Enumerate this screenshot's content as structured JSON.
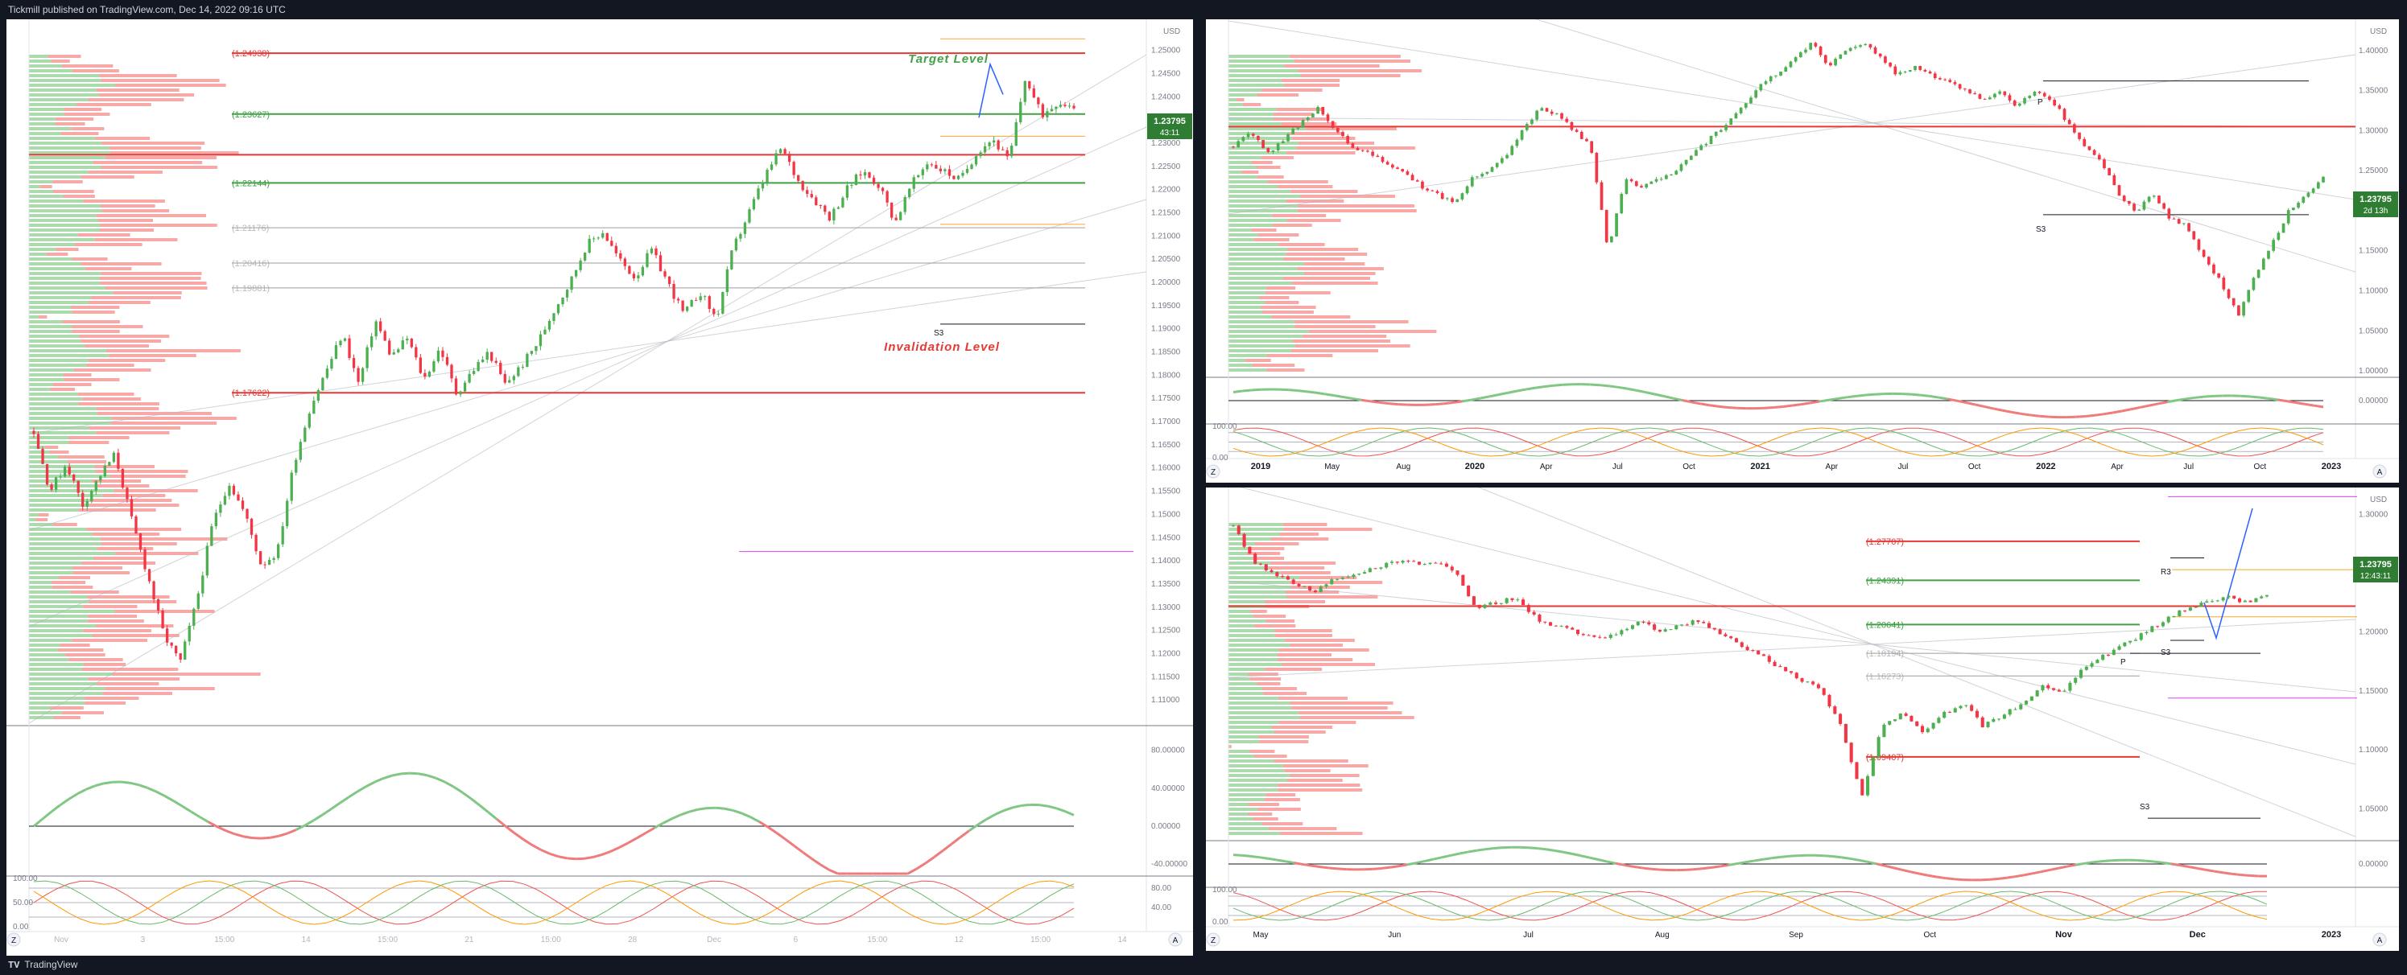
{
  "header": {
    "published": "Tickmill published on TradingView.com, Dec 14, 2022 09:16 UTC"
  },
  "footer": {
    "brand": "TradingView"
  },
  "colors": {
    "bull": "#4caf50",
    "bear": "#f23645",
    "bg": "#ffffff",
    "osc_up": "#81c784",
    "osc_down": "#ef7b7b",
    "level_red": "#e53935",
    "level_green": "#43a047",
    "target": "#43a047",
    "yellow": "#f9a825",
    "magenta": "#e040fb"
  },
  "icons": {
    "z_button": "Z",
    "a_button": "A",
    "tv_logo": "tv-logo-icon"
  },
  "chart_data": [
    {
      "panel": "left",
      "type": "candlestick",
      "timeframe": "intraday",
      "currency_label": "USD",
      "price_axis": [
        "1.25000",
        "1.24500",
        "1.24000",
        "1.23500",
        "1.23000",
        "1.22500",
        "1.22000",
        "1.21500",
        "1.21000",
        "1.20500",
        "1.20000",
        "1.19500",
        "1.19000",
        "1.18500",
        "1.18000",
        "1.17500",
        "1.17000",
        "1.16500",
        "1.16000",
        "1.15500",
        "1.15000",
        "1.14500",
        "1.14000",
        "1.13500",
        "1.13000",
        "1.12500",
        "1.12000",
        "1.11500",
        "1.11000"
      ],
      "ylim": [
        1.105,
        1.256
      ],
      "time_axis": [
        "Nov",
        "3",
        "15:00",
        "14",
        "15:00",
        "21",
        "15:00",
        "28",
        "Dec",
        "6",
        "15:00",
        "12",
        "15:00",
        "14"
      ],
      "levels": [
        {
          "label": "(1.24938)",
          "value": 1.24938,
          "color": "red"
        },
        {
          "label": "(1.23627)",
          "value": 1.23627,
          "color": "green"
        },
        {
          "label": "(1.22144)",
          "value": 1.22144,
          "color": "green"
        },
        {
          "label": "(1.21176)",
          "value": 1.21176,
          "color": "gray"
        },
        {
          "label": "(1.20416)",
          "value": 1.20416,
          "color": "gray"
        },
        {
          "label": "(1.19881)",
          "value": 1.19881,
          "color": "gray"
        },
        {
          "label": "(1.17622)",
          "value": 1.17622,
          "color": "red"
        }
      ],
      "annotations": {
        "target": "Target  Level",
        "invalidation": "Invalidation Level",
        "s3": "S3"
      },
      "price_tag": {
        "value": "1.23795",
        "timer": "43:11"
      },
      "close_path": [
        1.168,
        1.155,
        1.161,
        1.152,
        1.158,
        1.163,
        1.149,
        1.137,
        1.124,
        1.118,
        1.131,
        1.148,
        1.157,
        1.15,
        1.139,
        1.142,
        1.161,
        1.173,
        1.181,
        1.189,
        1.178,
        1.192,
        1.184,
        1.188,
        1.179,
        1.186,
        1.176,
        1.181,
        1.185,
        1.178,
        1.182,
        1.187,
        1.194,
        1.2,
        1.208,
        1.211,
        1.205,
        1.201,
        1.207,
        1.2,
        1.193,
        1.198,
        1.192,
        1.207,
        1.215,
        1.223,
        1.229,
        1.222,
        1.218,
        1.214,
        1.22,
        1.224,
        1.221,
        1.213,
        1.221,
        1.226,
        1.224,
        1.222,
        1.228,
        1.231,
        1.226,
        1.244,
        1.236,
        1.239,
        1.238
      ],
      "oscillator": {
        "ticks": [
          "80.00000",
          "40.00000",
          "0.00000",
          "-40.00000"
        ],
        "ylim": [
          -50,
          100
        ]
      },
      "stoch": {
        "ticks": [
          "100.00",
          "50.00",
          "0.00"
        ],
        "right_ticks": [
          "80.00",
          "40.00"
        ]
      }
    },
    {
      "panel": "top-right",
      "type": "candlestick",
      "timeframe": "weekly",
      "currency_label": "USD",
      "price_axis": [
        "1.40000",
        "1.35000",
        "1.30000",
        "1.25000",
        "1.20000",
        "1.15000",
        "1.10000",
        "1.05000",
        "1.00000"
      ],
      "ylim": [
        0.995,
        1.435
      ],
      "time_axis": [
        "2019",
        "May",
        "Aug",
        "2020",
        "Apr",
        "Jul",
        "Oct",
        "2021",
        "Apr",
        "Jul",
        "Oct",
        "2022",
        "Apr",
        "Jul",
        "Oct",
        "2023"
      ],
      "labels": {
        "p": "P",
        "s3": "S3"
      },
      "price_tag": {
        "value": "1.23795",
        "timer": "2d 13h"
      },
      "close_path": [
        1.28,
        1.3,
        1.27,
        1.29,
        1.31,
        1.33,
        1.3,
        1.28,
        1.27,
        1.26,
        1.25,
        1.23,
        1.22,
        1.21,
        1.24,
        1.25,
        1.27,
        1.3,
        1.33,
        1.32,
        1.3,
        1.28,
        1.15,
        1.24,
        1.23,
        1.24,
        1.25,
        1.27,
        1.29,
        1.31,
        1.33,
        1.36,
        1.37,
        1.39,
        1.41,
        1.38,
        1.4,
        1.41,
        1.39,
        1.37,
        1.38,
        1.37,
        1.36,
        1.35,
        1.34,
        1.35,
        1.33,
        1.35,
        1.34,
        1.31,
        1.28,
        1.26,
        1.22,
        1.2,
        1.22,
        1.19,
        1.18,
        1.14,
        1.11,
        1.07,
        1.12,
        1.16,
        1.2,
        1.22,
        1.24
      ],
      "oscillator": {
        "ticks": [
          "0.00000"
        ],
        "ylim": [
          -1,
          1
        ]
      },
      "stoch": {
        "ticks": [
          "100.00",
          "0.00"
        ]
      }
    },
    {
      "panel": "bottom-right",
      "type": "candlestick",
      "timeframe": "daily",
      "currency_label": "USD",
      "price_axis": [
        "1.30000",
        "1.25000",
        "1.20000",
        "1.15000",
        "1.10000",
        "1.05000"
      ],
      "ylim": [
        1.025,
        1.32
      ],
      "time_axis": [
        "May",
        "Jun",
        "Jul",
        "Aug",
        "Sep",
        "Oct",
        "Nov",
        "Dec",
        "2023"
      ],
      "levels": [
        {
          "label": "(1.27707)",
          "value": 1.27707,
          "color": "red"
        },
        {
          "label": "(1.24391)",
          "value": 1.24391,
          "color": "green"
        },
        {
          "label": "(1.20641)",
          "value": 1.20641,
          "color": "green"
        },
        {
          "label": "(1.18194)",
          "value": 1.18194,
          "color": "gray"
        },
        {
          "label": "(1.16273)",
          "value": 1.16273,
          "color": "gray"
        },
        {
          "label": "(1.09407)",
          "value": 1.09407,
          "color": "red"
        }
      ],
      "labels": {
        "r3": "R3",
        "s3a": "S3",
        "s3b": "S3",
        "p": "P"
      },
      "price_tag": {
        "value": "1.23795",
        "timer": "12:43:11"
      },
      "close_path": [
        1.29,
        1.26,
        1.25,
        1.24,
        1.235,
        1.245,
        1.25,
        1.255,
        1.26,
        1.258,
        1.26,
        1.25,
        1.22,
        1.225,
        1.23,
        1.21,
        1.205,
        1.2,
        1.195,
        1.2,
        1.21,
        1.2,
        1.205,
        1.21,
        1.2,
        1.19,
        1.18,
        1.17,
        1.16,
        1.15,
        1.12,
        1.06,
        1.12,
        1.13,
        1.115,
        1.13,
        1.14,
        1.12,
        1.13,
        1.14,
        1.155,
        1.15,
        1.17,
        1.18,
        1.19,
        1.2,
        1.21,
        1.22,
        1.225,
        1.23,
        1.225,
        1.232
      ],
      "oscillator": {
        "ticks": [
          "0.00000"
        ],
        "ylim": [
          -1,
          1
        ]
      },
      "stoch": {
        "ticks": [
          "100.00",
          "0.00"
        ]
      }
    }
  ]
}
